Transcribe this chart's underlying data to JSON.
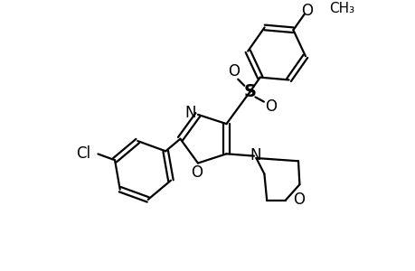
{
  "background_color": "#ffffff",
  "line_color": "#000000",
  "line_width": 1.6,
  "font_size": 12,
  "fig_width": 4.6,
  "fig_height": 3.0,
  "dpi": 100,
  "xlim": [
    0,
    9.2
  ],
  "ylim": [
    0,
    6.0
  ]
}
